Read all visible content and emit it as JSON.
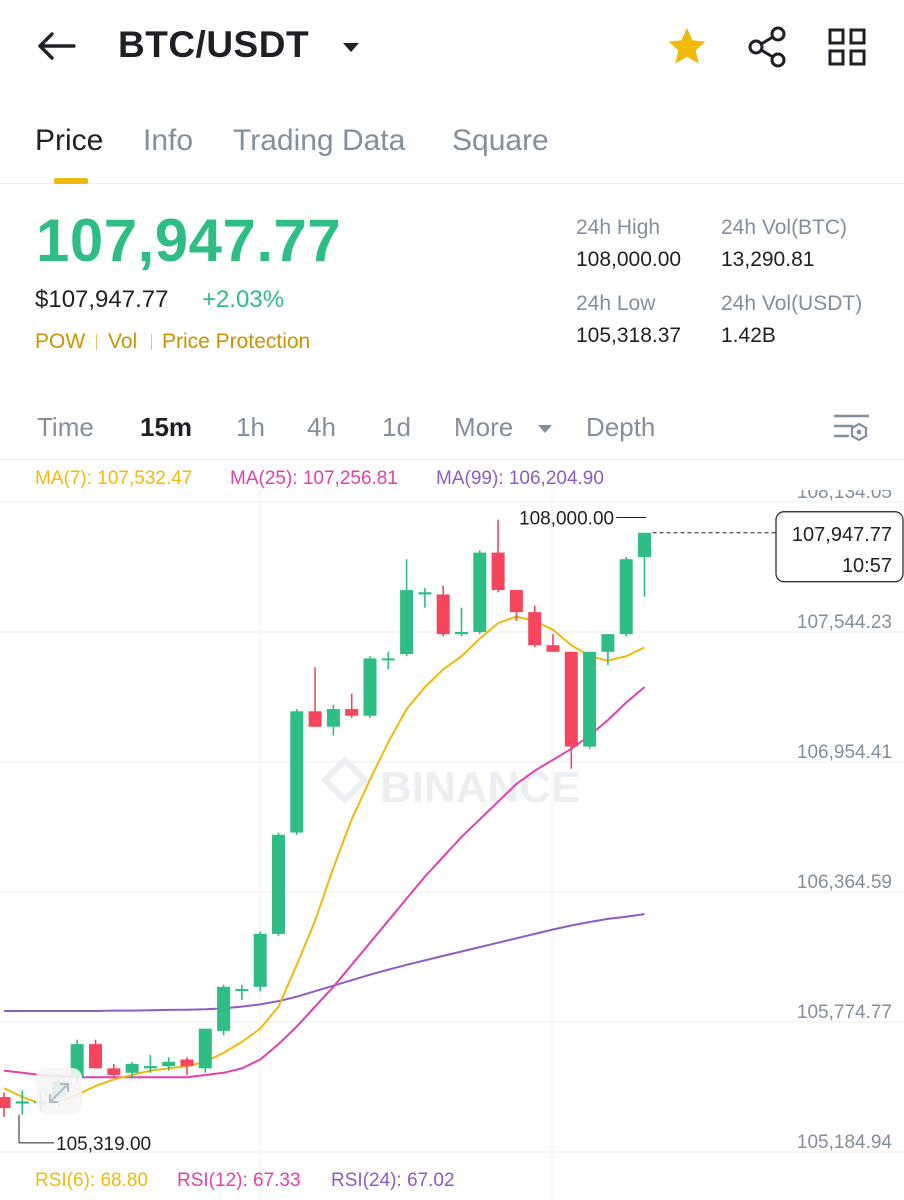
{
  "header": {
    "pair": "BTC/USDT",
    "icons": {
      "back": "arrow-left-icon",
      "caret": "caret-down-icon",
      "favorite": "star-icon",
      "share": "share-icon",
      "more": "grid-icon"
    },
    "favorite_color": "#f0b90b"
  },
  "tabs": [
    {
      "label": "Price",
      "active": true
    },
    {
      "label": "Info",
      "active": false
    },
    {
      "label": "Trading Data",
      "active": false
    },
    {
      "label": "Square",
      "active": false
    }
  ],
  "ticker": {
    "last_price": "107,947.77",
    "usd_price": "$107,947.77",
    "change_pct": "+2.03%",
    "tags": [
      "POW",
      "Vol",
      "Price Protection"
    ],
    "stats": {
      "high_label": "24h High",
      "high_value": "108,000.00",
      "vol_btc_label": "24h Vol(BTC)",
      "vol_btc_value": "13,290.81",
      "low_label": "24h Low",
      "low_value": "105,318.37",
      "vol_usdt_label": "24h Vol(USDT)",
      "vol_usdt_value": "1.42B"
    },
    "colors": {
      "up": "#2ebd85",
      "down": "#f6465d",
      "accent": "#f0b90b"
    }
  },
  "intervals": {
    "items": [
      {
        "label": "Time",
        "active": false
      },
      {
        "label": "15m",
        "active": true
      },
      {
        "label": "1h",
        "active": false
      },
      {
        "label": "4h",
        "active": false
      },
      {
        "label": "1d",
        "active": false
      },
      {
        "label": "More",
        "active": false
      },
      {
        "label": "Depth",
        "active": false
      }
    ]
  },
  "indicators": {
    "ma7": "MA(7): 107,532.47",
    "ma25": "MA(25): 107,256.81",
    "ma99": "MA(99): 106,204.90",
    "rsi6": "RSI(6): 68.80",
    "rsi12": "RSI(12): 67.33",
    "rsi24": "RSI(24): 67.02",
    "colors": {
      "ma7": "#f0b90b",
      "ma25": "#e040b0",
      "ma99": "#8e5cc4"
    }
  },
  "chart_data": {
    "type": "candlestick",
    "interval": "15m",
    "watermark": "BINANCE",
    "y_ticks": [
      "108,134.05",
      "107,544.23",
      "106,954.41",
      "106,364.59",
      "105,774.77",
      "105,184.94"
    ],
    "y_tick_values": [
      108134.05,
      107544.23,
      106954.41,
      106364.59,
      105774.77,
      105184.94
    ],
    "ylim": [
      105184.94,
      108134.05
    ],
    "last_price_label": "107,947.77",
    "last_time_label": "10:57",
    "high_marker": "108,000.00",
    "low_marker": "105,319.00",
    "candles": [
      {
        "o": 105380,
        "h": 105400,
        "l": 105290,
        "c": 105330
      },
      {
        "o": 105350,
        "h": 105410,
        "l": 105300,
        "c": 105360
      },
      {
        "o": 105360,
        "h": 105400,
        "l": 105319,
        "c": 105360
      },
      {
        "o": 105380,
        "h": 105460,
        "l": 105340,
        "c": 105450
      },
      {
        "o": 105470,
        "h": 105640,
        "l": 105440,
        "c": 105620
      },
      {
        "o": 105620,
        "h": 105640,
        "l": 105510,
        "c": 105510
      },
      {
        "o": 105510,
        "h": 105530,
        "l": 105470,
        "c": 105480
      },
      {
        "o": 105490,
        "h": 105540,
        "l": 105470,
        "c": 105530
      },
      {
        "o": 105510,
        "h": 105570,
        "l": 105490,
        "c": 105520
      },
      {
        "o": 105520,
        "h": 105560,
        "l": 105500,
        "c": 105540
      },
      {
        "o": 105550,
        "h": 105560,
        "l": 105480,
        "c": 105520
      },
      {
        "o": 105510,
        "h": 105690,
        "l": 105490,
        "c": 105690
      },
      {
        "o": 105680,
        "h": 105890,
        "l": 105660,
        "c": 105880
      },
      {
        "o": 105870,
        "h": 105890,
        "l": 105820,
        "c": 105870
      },
      {
        "o": 105880,
        "h": 106130,
        "l": 105860,
        "c": 106120
      },
      {
        "o": 106120,
        "h": 106580,
        "l": 106110,
        "c": 106570
      },
      {
        "o": 106580,
        "h": 107140,
        "l": 106570,
        "c": 107130
      },
      {
        "o": 107130,
        "h": 107330,
        "l": 107060,
        "c": 107060
      },
      {
        "o": 107060,
        "h": 107160,
        "l": 107020,
        "c": 107140
      },
      {
        "o": 107140,
        "h": 107210,
        "l": 107100,
        "c": 107110
      },
      {
        "o": 107110,
        "h": 107380,
        "l": 107100,
        "c": 107370
      },
      {
        "o": 107370,
        "h": 107400,
        "l": 107320,
        "c": 107370
      },
      {
        "o": 107390,
        "h": 107820,
        "l": 107380,
        "c": 107680
      },
      {
        "o": 107660,
        "h": 107690,
        "l": 107600,
        "c": 107670
      },
      {
        "o": 107660,
        "h": 107700,
        "l": 107470,
        "c": 107480
      },
      {
        "o": 107480,
        "h": 107600,
        "l": 107470,
        "c": 107490
      },
      {
        "o": 107490,
        "h": 107860,
        "l": 107480,
        "c": 107850
      },
      {
        "o": 107850,
        "h": 108000,
        "l": 107670,
        "c": 107680
      },
      {
        "o": 107680,
        "h": 107680,
        "l": 107540,
        "c": 107580
      },
      {
        "o": 107580,
        "h": 107610,
        "l": 107420,
        "c": 107430
      },
      {
        "o": 107430,
        "h": 107480,
        "l": 107400,
        "c": 107400
      },
      {
        "o": 107400,
        "h": 107400,
        "l": 106870,
        "c": 106970
      },
      {
        "o": 106970,
        "h": 107400,
        "l": 106960,
        "c": 107400
      },
      {
        "o": 107400,
        "h": 107480,
        "l": 107340,
        "c": 107480
      },
      {
        "o": 107480,
        "h": 107830,
        "l": 107470,
        "c": 107820
      },
      {
        "o": 107830,
        "h": 107930,
        "l": 107650,
        "c": 107940
      }
    ],
    "ma7": [
      105420,
      105380,
      105350,
      105360,
      105390,
      105430,
      105460,
      105480,
      105500,
      105510,
      105520,
      105540,
      105580,
      105630,
      105690,
      105790,
      105980,
      106180,
      106420,
      106640,
      106820,
      106990,
      107140,
      107240,
      107320,
      107380,
      107460,
      107530,
      107560,
      107540,
      107500,
      107430,
      107380,
      107360,
      107380,
      107420
    ],
    "ma25": [
      105500,
      105490,
      105480,
      105475,
      105470,
      105470,
      105470,
      105470,
      105470,
      105470,
      105470,
      105480,
      105490,
      105510,
      105550,
      105620,
      105700,
      105790,
      105880,
      105980,
      106080,
      106180,
      106280,
      106380,
      106470,
      106560,
      106640,
      106720,
      106800,
      106860,
      106910,
      106960,
      107020,
      107090,
      107170,
      107240
    ],
    "ma99": [
      105770,
      105770,
      105770,
      105770,
      105770,
      105770,
      105772,
      105772,
      105774,
      105775,
      105776,
      105778,
      105782,
      105790,
      105800,
      105815,
      105835,
      105860,
      105885,
      105910,
      105935,
      105958,
      105980,
      106000,
      106020,
      106040,
      106060,
      106080,
      106100,
      106120,
      106140,
      106158,
      106174,
      106188,
      106198,
      106210
    ]
  }
}
